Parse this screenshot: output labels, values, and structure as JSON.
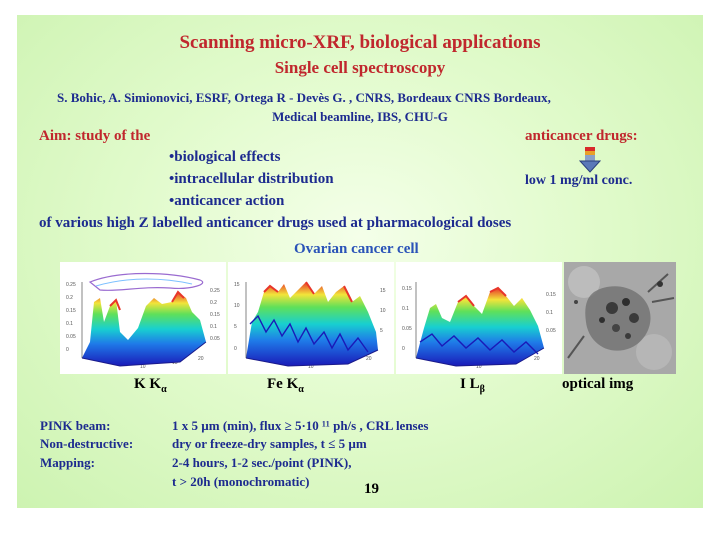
{
  "slide": {
    "title": "Scanning micro-XRF, biological applications",
    "subtitle": "Single cell spectroscopy",
    "authors_line1": "S. Bohic, A. Simionovici, ESRF, Ortega R - Devès G. , CNRS, Bordeaux CNRS Bordeaux,",
    "authors_line2": "Medical beamline, IBS, CHU-G",
    "aim_label": "Aim: study of the",
    "drugs_label": "anticancer drugs:",
    "bullets": [
      "•biological effects",
      "•intracellular distribution",
      "•anticancer action"
    ],
    "conc_label": "low 1 mg/ml conc.",
    "various_line": "of various high Z labelled anticancer drugs used at pharmacological doses",
    "figure_title": "Ovarian cancer cell",
    "panel_labels": {
      "k": "K K",
      "k_sub": "α",
      "fe": "Fe K",
      "fe_sub": "α",
      "i": "I L",
      "i_sub": "β",
      "optical": "optical img"
    },
    "panel_ticks": {
      "k_z": [
        "0.25",
        "0.2",
        "0.15",
        "0.1",
        "0.05",
        "0"
      ],
      "k_r": [
        "0.25",
        "0.2",
        "0.15",
        "0.1",
        "0.05"
      ],
      "fe_z": [
        "15",
        "10",
        "5",
        "0"
      ],
      "fe_r": [
        "15",
        "10",
        "5"
      ],
      "i_z": [
        "0.15",
        "0.1",
        "0.05",
        "0"
      ],
      "i_r": [
        "0.15",
        "0.1",
        "0.05"
      ],
      "x": [
        "10",
        "15",
        "20"
      ]
    },
    "specs": [
      {
        "label": "PINK beam:",
        "value": "1 x 5 µm (min), flux ≥ 5·10 ¹¹ ph/s , CRL lenses"
      },
      {
        "label": "Non-destructive:",
        "value": "dry or freeze-dry samples, t ≤ 5 µm"
      },
      {
        "label": "Mapping:",
        "value": "2-4 hours, 1-2 sec./point (PINK),"
      },
      {
        "label": "",
        "value": "t > 20h (monochromatic)"
      }
    ],
    "page_number": "19",
    "colors": {
      "title": "#c0272d",
      "text": "#1d2b8f",
      "background": "#dff8c8"
    }
  }
}
